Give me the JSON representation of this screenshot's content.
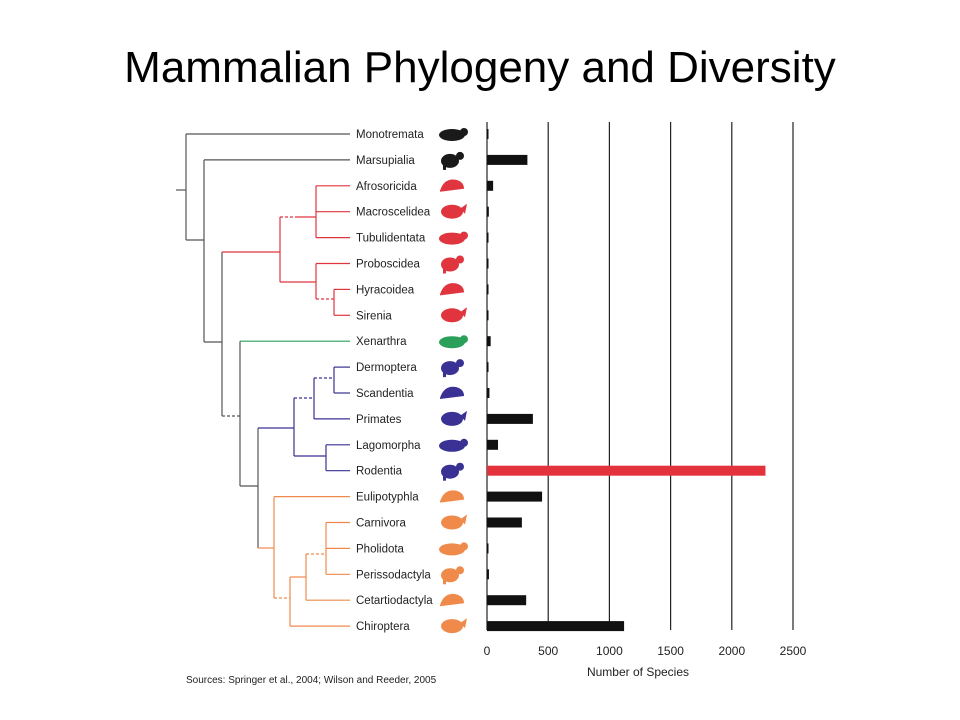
{
  "title": "Mammalian Phylogeny and Diversity",
  "sources": "Sources: Springer et al., 2004; Wilson and Reeder, 2005",
  "colors": {
    "default_bar": "#111111",
    "highlight_bar": "#e3323b",
    "tree_base": "#555555",
    "afrotheria": "#e0353e",
    "xenarthra": "#2aa05a",
    "euarchontoglires": "#3a3194",
    "laurasiatheria": "#f08a4b",
    "grid": "#222222"
  },
  "chart_data": {
    "type": "bar",
    "orientation": "horizontal",
    "xlabel": "Number of Species",
    "xlim": [
      0,
      2500
    ],
    "xticks": [
      0,
      500,
      1000,
      1500,
      2000,
      2500
    ],
    "grid": true,
    "categories": [
      "Monotremata",
      "Marsupialia",
      "Afrosoricida",
      "Macroscelidea",
      "Tubulidentata",
      "Proboscidea",
      "Hyracoidea",
      "Sirenia",
      "Xenarthra",
      "Dermoptera",
      "Scandentia",
      "Primates",
      "Lagomorpha",
      "Rodentia",
      "Eulipotyphla",
      "Carnivora",
      "Pholidota",
      "Perissodactyla",
      "Cetartiodactyla",
      "Chiroptera"
    ],
    "values": [
      5,
      330,
      50,
      15,
      1,
      3,
      4,
      5,
      30,
      2,
      20,
      375,
      90,
      2275,
      450,
      285,
      8,
      16,
      320,
      1120
    ],
    "groups": [
      "base",
      "base",
      "afrotheria",
      "afrotheria",
      "afrotheria",
      "afrotheria",
      "afrotheria",
      "afrotheria",
      "xenarthra",
      "euarchontoglires",
      "euarchontoglires",
      "euarchontoglires",
      "euarchontoglires",
      "euarchontoglires",
      "laurasiatheria",
      "laurasiatheria",
      "laurasiatheria",
      "laurasiatheria",
      "laurasiatheria",
      "laurasiatheria"
    ],
    "highlight": "Rodentia"
  },
  "icons": [
    "platypus-icon",
    "kangaroo-icon",
    "tenrec-icon",
    "elephant-shrew-icon",
    "aardvark-icon",
    "elephant-icon",
    "hyrax-icon",
    "manatee-icon",
    "armadillo-icon",
    "colugo-icon",
    "treeshrew-icon",
    "gorilla-icon",
    "rabbit-icon",
    "rat-icon",
    "mole-icon",
    "tiger-icon",
    "pangolin-icon",
    "horse-icon",
    "camel-icon",
    "bat-icon"
  ]
}
